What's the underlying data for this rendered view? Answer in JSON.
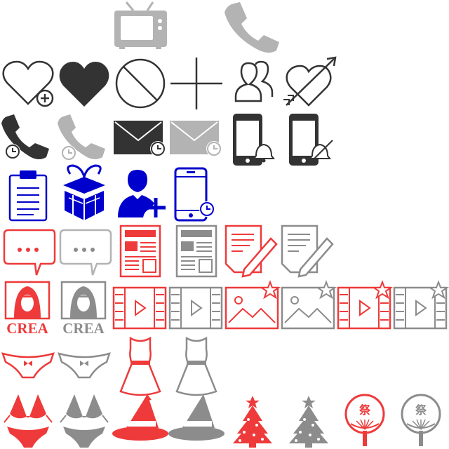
{
  "colors": {
    "black": "#333333",
    "gray": "#b3b3b3",
    "darkgray": "#8c8c8c",
    "blue": "#0000cc",
    "red": "#ee3a3a",
    "white": "#ffffff"
  },
  "rows": [
    {
      "row": 1,
      "icons": [
        "tv-icon",
        "phone-icon"
      ]
    },
    {
      "row": 2,
      "icons": [
        "heart-add-icon",
        "heart-filled-icon",
        "prohibited-icon",
        "crosshair-plus-icon",
        "users-icon",
        "heart-arrow-icon"
      ]
    },
    {
      "row": 3,
      "icons": [
        "phone-clock-icon",
        "phone-clock-icon",
        "mail-clock-icon",
        "mail-clock-icon",
        "smartphone-bell-icon",
        "smartphone-bell-off-icon"
      ]
    },
    {
      "row": 4,
      "icons": [
        "clipboard-icon",
        "gift-icon",
        "user-add-icon",
        "smartphone-clock-icon"
      ]
    },
    {
      "row": 5,
      "icons": [
        "chat-bubble-icon",
        "chat-bubble-icon",
        "newspaper-icon",
        "newspaper-icon",
        "document-pencil-icon",
        "document-pencil-icon"
      ]
    },
    {
      "row": 6,
      "icons": [
        "crea-portrait-icon",
        "crea-portrait-icon",
        "video-film-icon",
        "video-film-icon",
        "photo-star-icon",
        "photo-star-icon",
        "video-star-icon",
        "video-star-icon"
      ]
    },
    {
      "row": 7,
      "icons": [
        "panties-icon",
        "panties-icon",
        "dress-icon",
        "dress-icon"
      ]
    },
    {
      "row": 8,
      "icons": [
        "bikini-icon",
        "bikini-icon",
        "witch-hat-icon",
        "witch-hat-icon",
        "christmas-tree-icon",
        "christmas-tree-icon",
        "matsuri-fan-icon",
        "matsuri-fan-icon"
      ]
    }
  ],
  "labels": {
    "crea_red": "CREA",
    "crea_gray": "CREA",
    "matsuri_red": "祭",
    "matsuri_gray": "祭"
  }
}
